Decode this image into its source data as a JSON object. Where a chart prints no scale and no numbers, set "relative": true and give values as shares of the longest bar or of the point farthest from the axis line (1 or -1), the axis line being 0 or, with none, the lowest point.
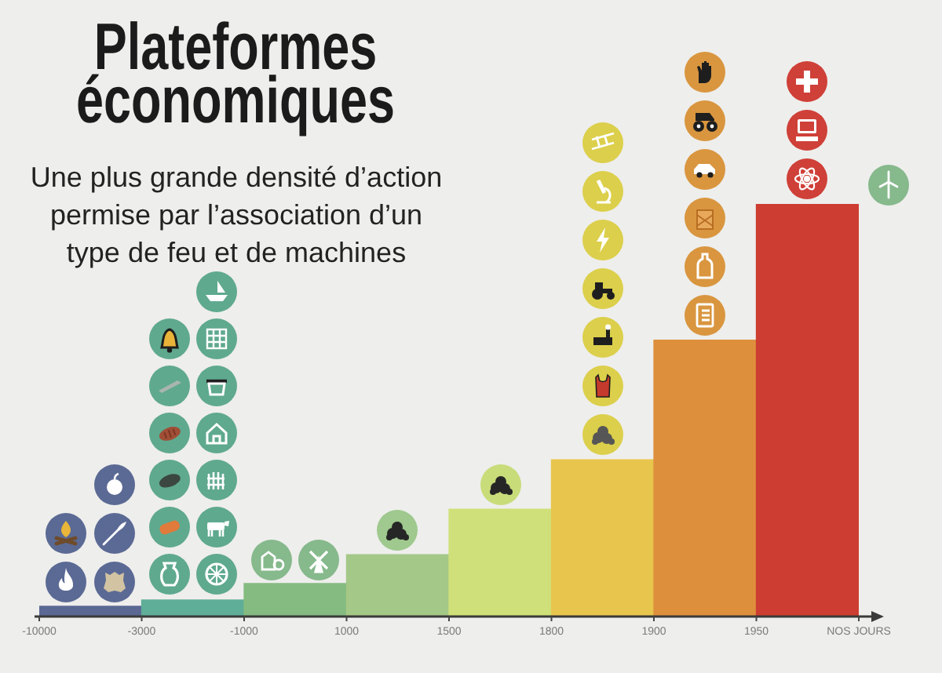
{
  "chart_data": {
    "type": "bar",
    "title": "Plateformes économiques",
    "subtitle": "Une plus grande densité d’action permise par l’association d’un type de feu et de machines",
    "categories": [
      null,
      null,
      null,
      null,
      null,
      null,
      null,
      null
    ],
    "values": [
      0.025,
      0.04,
      0.08,
      0.15,
      0.26,
      0.38,
      0.67,
      1
    ],
    "colors": [
      "#5b6894",
      "#5fae98",
      "#85bb80",
      "#a4c887",
      "#cfe07a",
      "#e8c54c",
      "#de8f3c",
      "#cd3d31"
    ],
    "relative": true,
    "annotations": [
      "-10000",
      "-3000",
      "-1000",
      "1000",
      "1500",
      "1800",
      "1900",
      "1950",
      "NOS JOURS"
    ]
  }
}
